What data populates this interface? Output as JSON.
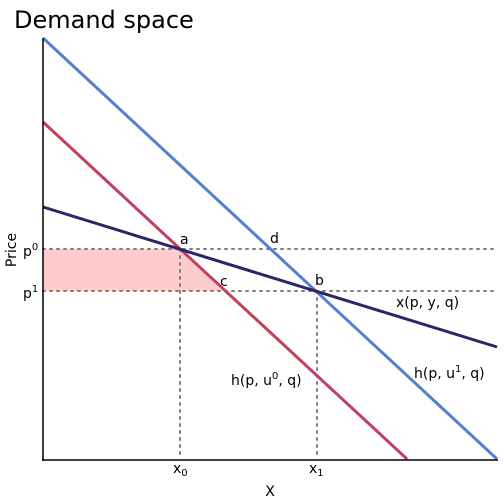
{
  "title": "Demand space",
  "axes": {
    "x_label": "X",
    "y_label": "Price"
  },
  "price_ticks": {
    "p0": {
      "base": "p",
      "sup": "0"
    },
    "p1": {
      "base": "p",
      "sup": "1"
    }
  },
  "quantity_ticks": {
    "x0": {
      "base": "x",
      "sub": "0"
    },
    "x1": {
      "base": "x",
      "sub": "1"
    }
  },
  "points": {
    "a": "a",
    "b": "b",
    "c": "c",
    "d": "d"
  },
  "curves": {
    "marshallian": {
      "label": "x(p, y, q)",
      "color": "#2e2466"
    },
    "hicks_u0": {
      "label_pre": "h(p, u",
      "label_sup": "0",
      "label_post": ", q)",
      "color": "#c0405e"
    },
    "hicks_u1": {
      "label_pre": "h(p, u",
      "label_sup": "1",
      "label_post": ", q)",
      "color": "#5580cc"
    }
  },
  "shaded_area_color": "#ffcccc",
  "guide_color": "#7f7f7f"
}
